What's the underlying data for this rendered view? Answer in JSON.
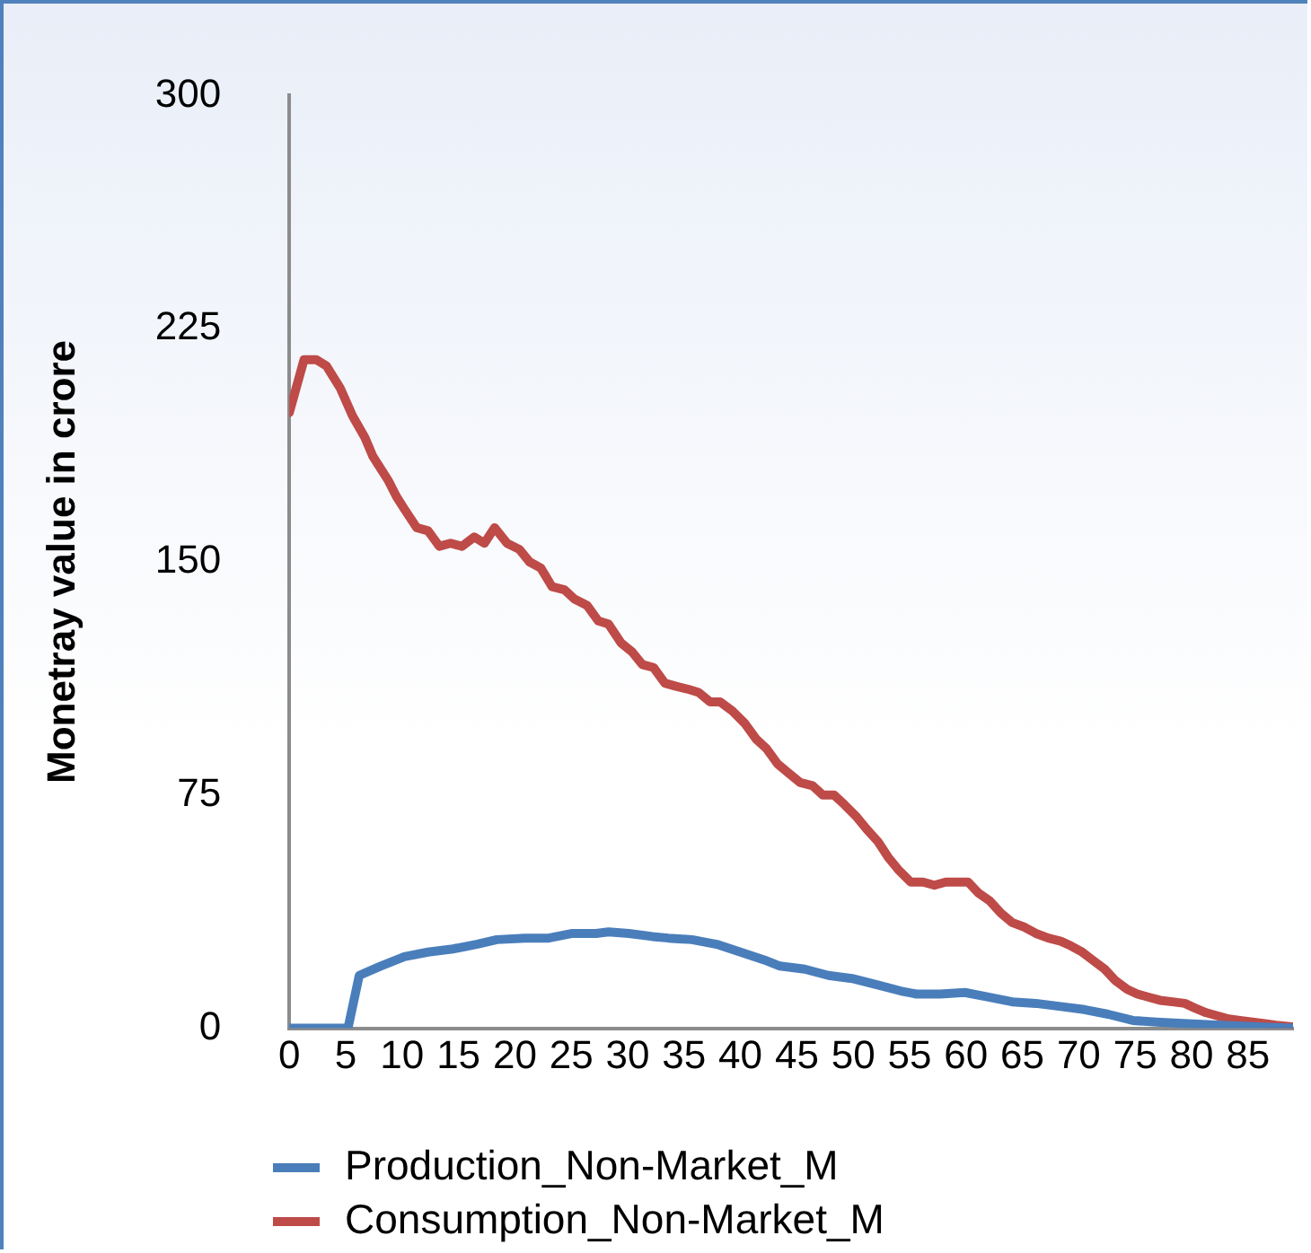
{
  "chart_data": {
    "type": "line",
    "ylabel": "Monetray value in crore",
    "xlim": [
      0,
      89
    ],
    "xticks": [
      0,
      5,
      10,
      15,
      20,
      25,
      30,
      35,
      40,
      45,
      50,
      55,
      60,
      65,
      70,
      75,
      80,
      85
    ],
    "ylim": [
      0,
      300
    ],
    "yticks": [
      0,
      75,
      150,
      225,
      300
    ],
    "grid": false,
    "legend": "bottom",
    "marker": "none",
    "line_style": "solid",
    "series": [
      {
        "name": "Production_Non-Market_M",
        "color": "#4a7ebb",
        "x": [
          0,
          5.2,
          6.2,
          8.1,
          10.2,
          12.3,
          14.5,
          16.6,
          18.4,
          20.9,
          23,
          25.1,
          27.2,
          28.3,
          30.1,
          32.2,
          33.6,
          35.7,
          37.9,
          40,
          42.1,
          43.5,
          45.7,
          47.8,
          49.9,
          52.1,
          54.2,
          55.6,
          57.7,
          59.9,
          62,
          64.1,
          66.2,
          68.4,
          70.5,
          72.6,
          74.8,
          76.9,
          79.7,
          82.6,
          85.4,
          88.9
        ],
        "values": [
          0,
          0,
          17,
          20,
          23,
          24.5,
          25.5,
          27,
          28.5,
          29,
          29,
          30.5,
          30.5,
          31,
          30.5,
          29.5,
          29,
          28.5,
          27,
          24.5,
          22,
          20,
          19,
          17,
          16,
          14,
          12,
          11,
          11,
          11.5,
          10,
          8.5,
          8,
          7,
          6,
          4.5,
          2.5,
          2,
          1.5,
          1,
          0.5,
          0
        ]
      },
      {
        "name": "Consumption_Non-Market_M",
        "color": "#be4b48",
        "x": [
          0,
          1.3,
          2.4,
          3.3,
          4.5,
          5.6,
          6.7,
          7.4,
          8.8,
          9.5,
          10.2,
          11.3,
          12.3,
          13.3,
          14.3,
          15.3,
          16.4,
          17.3,
          18.2,
          19.3,
          20.4,
          21.3,
          22.3,
          23.3,
          24.4,
          25.3,
          26.4,
          27.4,
          28.3,
          29.4,
          30.4,
          31.3,
          32.3,
          33.3,
          34.3,
          35.4,
          36.3,
          37.3,
          38.2,
          39.3,
          40.4,
          41.4,
          42.3,
          43.3,
          44.3,
          45.3,
          46.4,
          47.3,
          48.3,
          49.2,
          50.3,
          51.2,
          52.2,
          53.1,
          54,
          55.1,
          56.2,
          57.2,
          58.2,
          59.1,
          60.2,
          61.1,
          62.1,
          63.1,
          64.1,
          65.2,
          66.2,
          67.3,
          68.4,
          69.3,
          70.3,
          71.2,
          72.3,
          73.2,
          74.3,
          75.2,
          76.2,
          77.2,
          78.3,
          79.4,
          80.3,
          81.3,
          82.3,
          83.3,
          84.3,
          85.4,
          86.5,
          87.5,
          88.9
        ],
        "values": [
          198,
          215,
          215,
          213,
          206,
          197,
          190,
          184,
          176,
          171,
          167,
          161,
          160,
          155,
          156,
          155,
          158,
          156,
          161,
          156,
          154,
          150,
          148,
          142,
          141,
          138,
          136,
          131,
          130,
          124,
          121,
          117,
          116,
          111,
          110,
          109,
          108,
          105,
          105,
          102,
          98,
          93,
          90,
          85,
          82,
          79,
          78,
          75,
          75,
          72,
          68,
          64,
          60,
          55,
          51,
          47,
          47,
          46,
          47,
          47,
          47,
          43.5,
          41,
          37,
          34,
          32.5,
          30.5,
          29,
          28,
          26.5,
          24.5,
          22,
          19,
          15.5,
          12.5,
          11,
          10,
          9,
          8.5,
          8,
          6.5,
          5,
          4,
          3,
          2.5,
          2,
          1.5,
          1,
          0.5
        ]
      }
    ]
  }
}
